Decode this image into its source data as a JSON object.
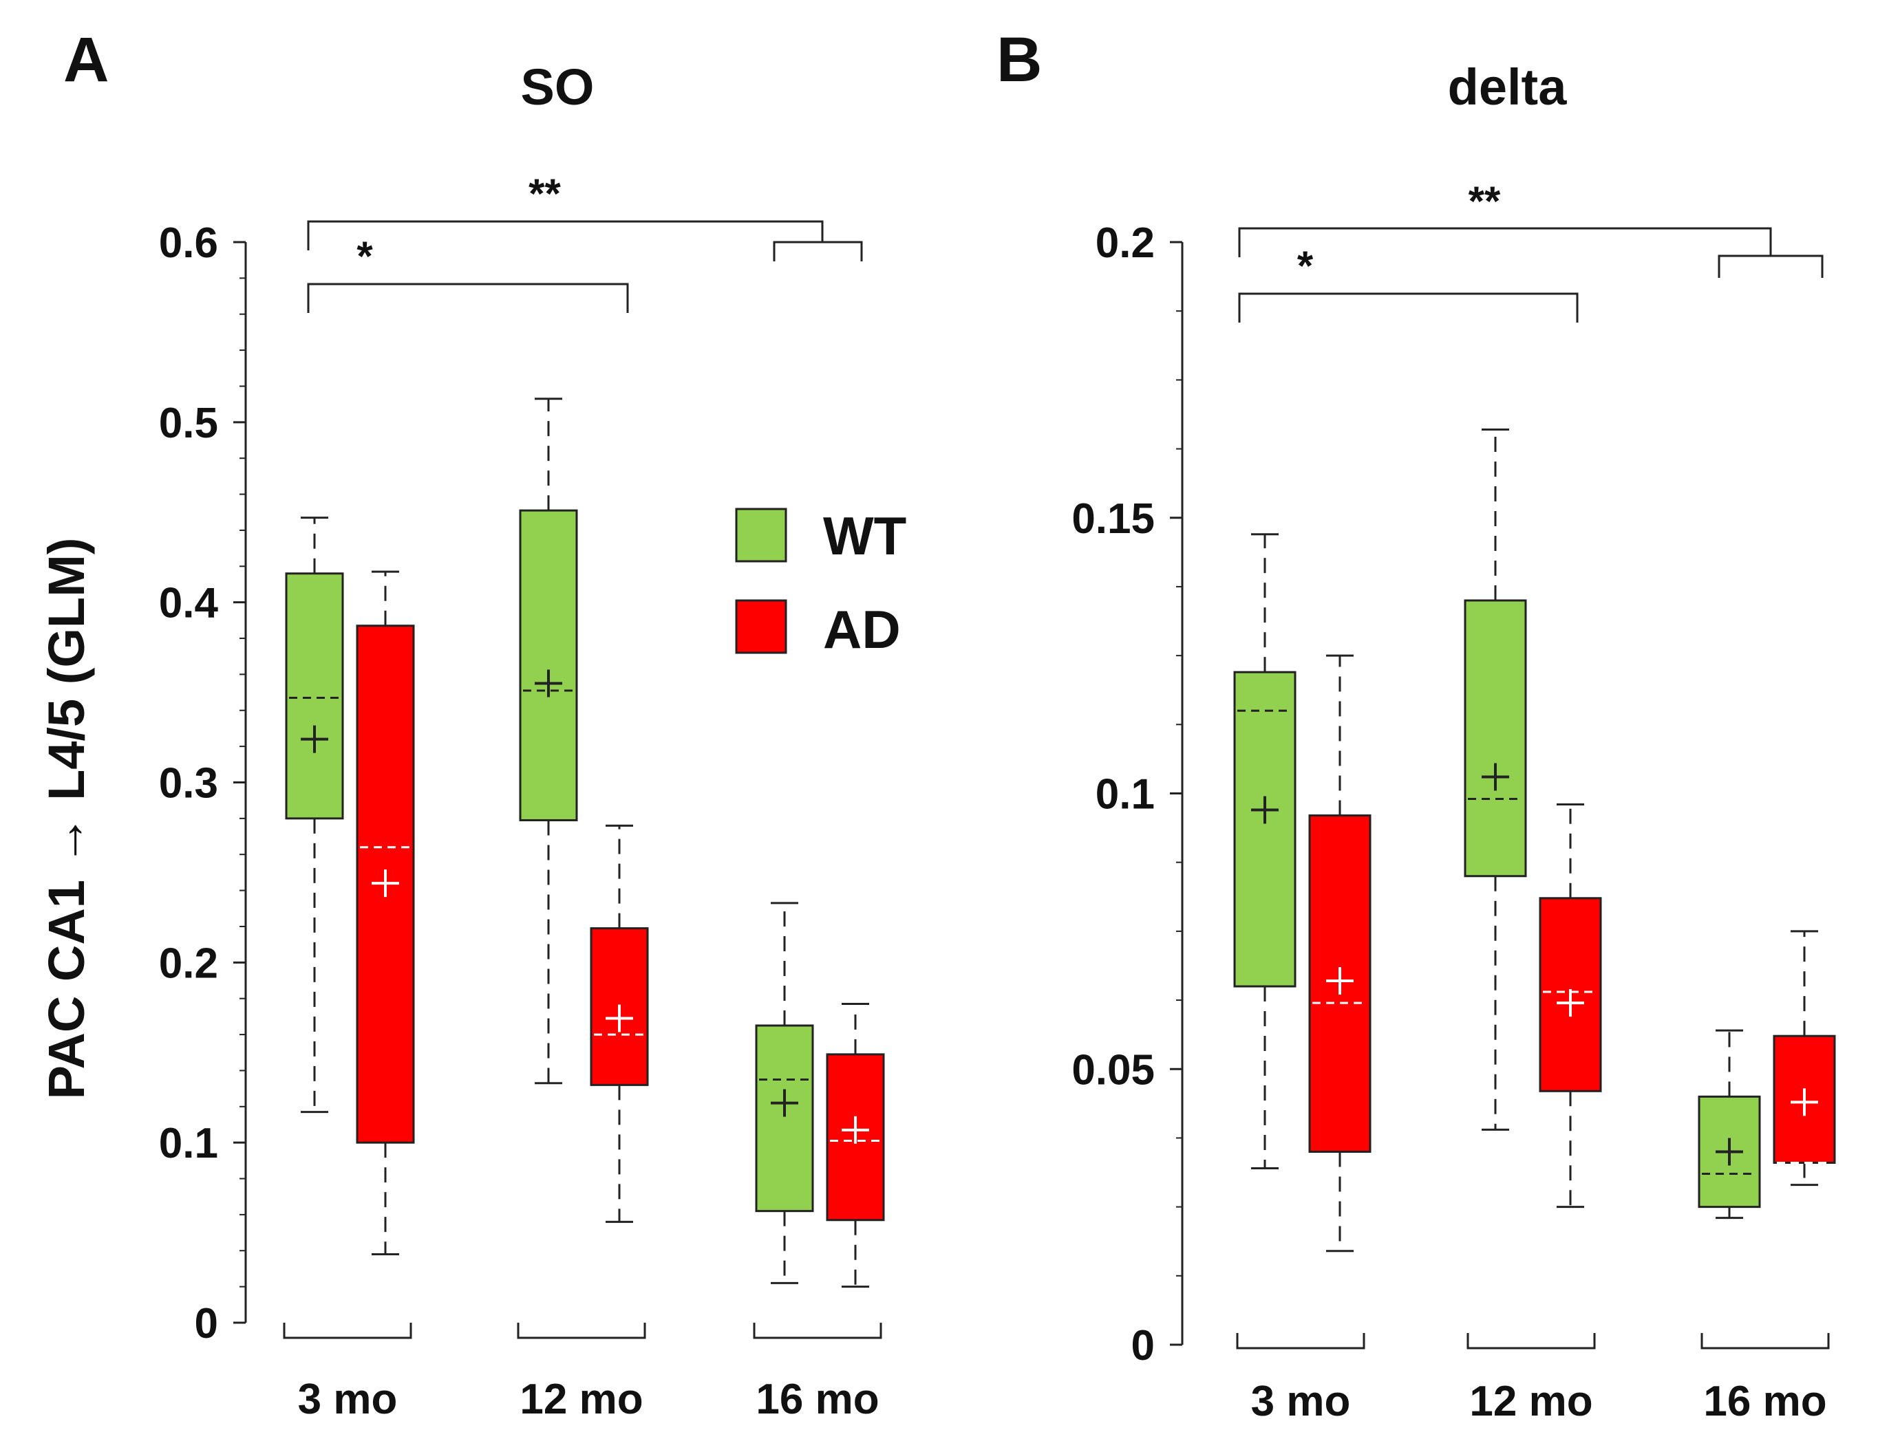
{
  "figure": {
    "y_axis_label": "PAC  CA1 → L4/5 (GLM)",
    "legend": [
      {
        "label": "WT",
        "color": "#92d050"
      },
      {
        "label": "AD",
        "color": "#ff0000"
      }
    ],
    "colors": {
      "wt": "#92d050",
      "ad": "#ff0000",
      "axis": "#222222"
    }
  },
  "chart_data": [
    {
      "type": "box",
      "panel_letter": "A",
      "title": "SO",
      "ylabel": "PAC  CA1 → L4/5 (GLM)",
      "ylim": [
        0,
        0.6
      ],
      "y_ticks": [
        0,
        0.1,
        0.2,
        0.3,
        0.4,
        0.5,
        0.6
      ],
      "y_tick_labels": [
        "0",
        "0.1",
        "0.2",
        "0.3",
        "0.4",
        "0.5",
        "0.6"
      ],
      "categories": [
        "3 mo",
        "12 mo",
        "16 mo"
      ],
      "series": [
        {
          "name": "WT",
          "boxes": [
            {
              "min": 0.117,
              "q1": 0.28,
              "median": 0.347,
              "mean": 0.324,
              "q3": 0.416,
              "max": 0.447
            },
            {
              "min": 0.133,
              "q1": 0.279,
              "median": 0.351,
              "mean": 0.355,
              "q3": 0.451,
              "max": 0.513
            },
            {
              "min": 0.022,
              "q1": 0.062,
              "median": 0.135,
              "mean": 0.122,
              "q3": 0.165,
              "max": 0.233
            }
          ]
        },
        {
          "name": "AD",
          "boxes": [
            {
              "min": 0.038,
              "q1": 0.1,
              "median": 0.264,
              "mean": 0.244,
              "q3": 0.387,
              "max": 0.417
            },
            {
              "min": 0.056,
              "q1": 0.132,
              "median": 0.16,
              "mean": 0.169,
              "q3": 0.219,
              "max": 0.276
            },
            {
              "min": 0.02,
              "q1": 0.057,
              "median": 0.101,
              "mean": 0.107,
              "q3": 0.149,
              "max": 0.177
            }
          ]
        }
      ],
      "significance": [
        {
          "label": "**",
          "from": "3 mo",
          "to": "16 mo"
        },
        {
          "label": "*",
          "from": "3 mo",
          "to": "12 mo"
        }
      ]
    },
    {
      "type": "box",
      "panel_letter": "B",
      "title": "delta",
      "ylabel": "",
      "ylim": [
        0,
        0.2
      ],
      "y_ticks": [
        0,
        0.05,
        0.1,
        0.15,
        0.2
      ],
      "y_tick_labels": [
        "0",
        "0.05",
        "0.1",
        "0.15",
        "0.2"
      ],
      "categories": [
        "3 mo",
        "12 mo",
        "16 mo"
      ],
      "series": [
        {
          "name": "WT",
          "boxes": [
            {
              "min": 0.032,
              "q1": 0.065,
              "median": 0.115,
              "mean": 0.097,
              "q3": 0.122,
              "max": 0.147
            },
            {
              "min": 0.039,
              "q1": 0.085,
              "median": 0.099,
              "mean": 0.103,
              "q3": 0.135,
              "max": 0.166
            },
            {
              "min": 0.023,
              "q1": 0.025,
              "median": 0.031,
              "mean": 0.035,
              "q3": 0.045,
              "max": 0.057
            }
          ]
        },
        {
          "name": "AD",
          "boxes": [
            {
              "min": 0.017,
              "q1": 0.035,
              "median": 0.062,
              "mean": 0.066,
              "q3": 0.096,
              "max": 0.125
            },
            {
              "min": 0.025,
              "q1": 0.046,
              "median": 0.064,
              "mean": 0.062,
              "q3": 0.081,
              "max": 0.098
            },
            {
              "min": 0.029,
              "q1": 0.033,
              "median": 0.033,
              "mean": 0.044,
              "q3": 0.056,
              "max": 0.075
            }
          ]
        }
      ],
      "significance": [
        {
          "label": "**",
          "from": "3 mo",
          "to": "16 mo"
        },
        {
          "label": "*",
          "from": "3 mo",
          "to": "12 mo"
        }
      ]
    }
  ]
}
